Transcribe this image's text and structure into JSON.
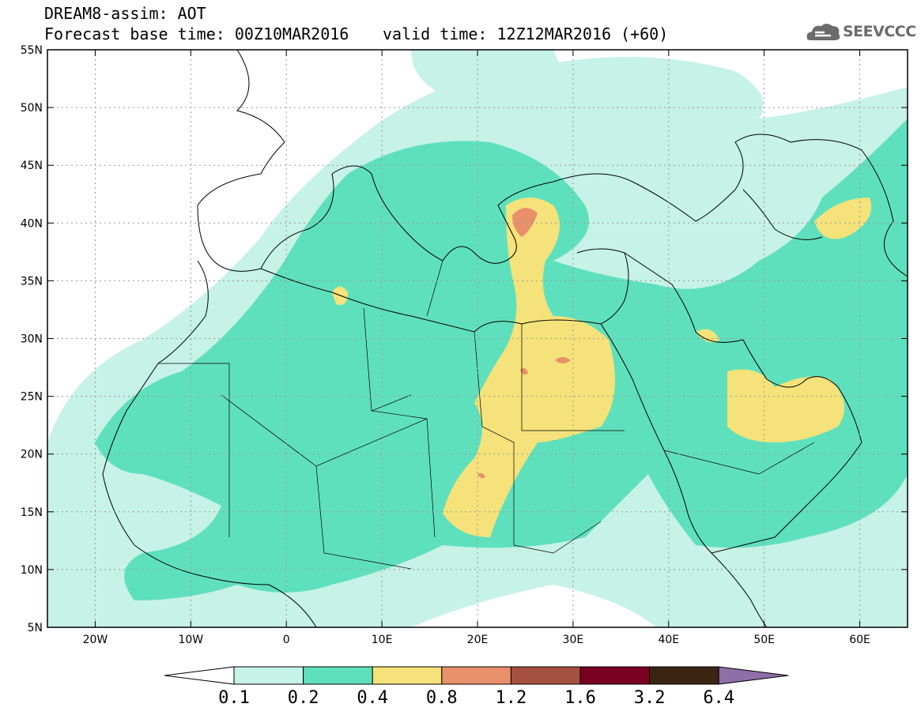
{
  "header": {
    "title": "DREAM8-assim: AOT",
    "base_time": "Forecast base time: 00Z10MAR2016",
    "valid_time": "valid time: 12Z12MAR2016 (+60)"
  },
  "logo": {
    "text": "SEEVCCC",
    "icon": "cloud-icon"
  },
  "map": {
    "lon_range": [
      -25,
      65
    ],
    "lat_range": [
      5,
      55
    ],
    "lat_ticks": [
      "55N",
      "50N",
      "45N",
      "40N",
      "35N",
      "30N",
      "25N",
      "20N",
      "15N",
      "10N",
      "5N"
    ],
    "lon_ticks": [
      "20W",
      "10W",
      "0",
      "10E",
      "20E",
      "30E",
      "40E",
      "50E",
      "60E"
    ],
    "gridlines": true
  },
  "colorbar": {
    "labels": [
      "0.1",
      "0.2",
      "0.4",
      "0.8",
      "1.2",
      "1.6",
      "3.2",
      "6.4"
    ],
    "colors": [
      "#ffffff",
      "#c6f2e8",
      "#5fe0bc",
      "#f5e27a",
      "#e8906a",
      "#a65040",
      "#7a0022",
      "#3b2412",
      "#8e6fa8"
    ]
  },
  "colors": {
    "aot_0_1": "#c6f2e8",
    "aot_0_2": "#5fe0bc",
    "aot_0_4": "#f5e27a",
    "aot_0_8": "#e8906a"
  }
}
